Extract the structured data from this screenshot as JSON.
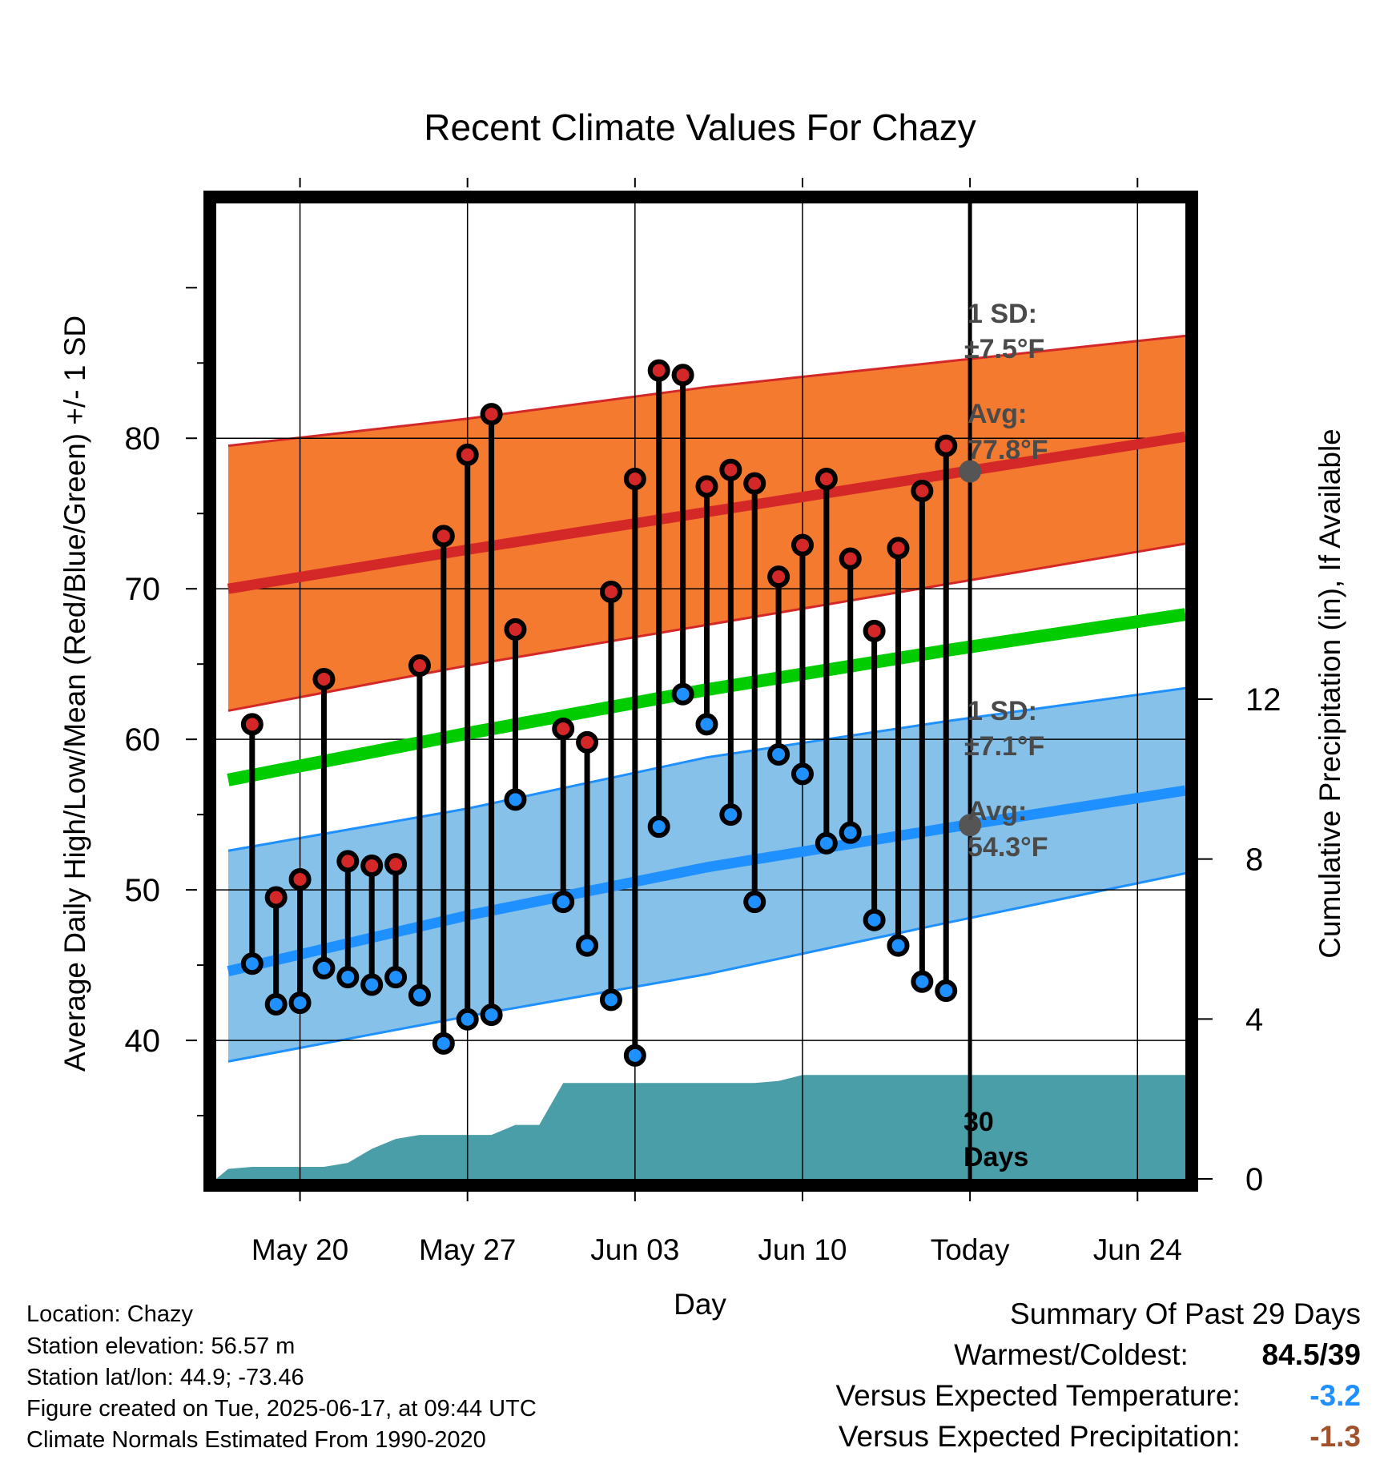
{
  "chart_data": {
    "type": "line",
    "title": "Recent Climate Values For Chazy",
    "xlabel": "Day",
    "ylabel": "Average Daily High/Low/Mean (Red/Blue/Green) +/- 1 SD",
    "y2label": "Cumulative Precipitation (in), If Available",
    "ylim": [
      30.8,
      95.6
    ],
    "y2lim": [
      0,
      24.4
    ],
    "x_tick_labels": [
      "May 20",
      "May 27",
      "Jun 03",
      "Jun 10",
      "Today",
      "Jun 24"
    ],
    "x_tick_dates": [
      "2025-05-20",
      "2025-05-27",
      "2025-06-03",
      "2025-06-10",
      "2025-06-17",
      "2025-06-24"
    ],
    "x_range": [
      "2025-05-16 12:00",
      "2025-06-26"
    ],
    "today": "2025-06-17",
    "y_tick_labels": [
      "40",
      "50",
      "60",
      "70",
      "80"
    ],
    "y2_tick_labels": [
      "0",
      "4",
      "8",
      "12"
    ],
    "grid": true,
    "colors": {
      "high_band": "#f47a30",
      "high_avg": "#d42828",
      "low_band": "#85c1e8",
      "low_avg": "#1e90ff",
      "mean": "#00cc00",
      "precip": "#4a9ea7",
      "high_marker": "#d42828",
      "low_marker": "#1e90ff",
      "today_marker": "#555555",
      "sd_label": "#4a4a4a"
    },
    "normals": {
      "dates": [
        "2025-05-17",
        "2025-05-27",
        "2025-06-06",
        "2025-06-16",
        "2025-06-26"
      ],
      "high_avg": [
        70.0,
        72.6,
        75.1,
        77.6,
        80.1
      ],
      "high_upper": [
        79.5,
        81.3,
        83.4,
        85.1,
        86.8
      ],
      "high_lower": [
        61.9,
        64.9,
        67.6,
        70.3,
        73.0
      ],
      "low_avg": [
        44.6,
        48.3,
        51.5,
        54.1,
        56.6
      ],
      "low_upper": [
        52.6,
        55.4,
        58.8,
        61.2,
        63.4
      ],
      "low_lower": [
        38.6,
        41.6,
        44.4,
        47.8,
        51.1
      ],
      "mean": [
        57.3,
        60.4,
        63.3,
        65.9,
        68.3
      ]
    },
    "series": [
      {
        "name": "High",
        "x": [
          "2025-05-18",
          "2025-05-19",
          "2025-05-20",
          "2025-05-21",
          "2025-05-22",
          "2025-05-23",
          "2025-05-24",
          "2025-05-25",
          "2025-05-26",
          "2025-05-27",
          "2025-05-28",
          "2025-05-29",
          "2025-05-31",
          "2025-06-01",
          "2025-06-02",
          "2025-06-03",
          "2025-06-04",
          "2025-06-05",
          "2025-06-06",
          "2025-06-07",
          "2025-06-08",
          "2025-06-09",
          "2025-06-10",
          "2025-06-11",
          "2025-06-12",
          "2025-06-13",
          "2025-06-14",
          "2025-06-15",
          "2025-06-16"
        ],
        "values": [
          61.0,
          49.5,
          50.7,
          64.0,
          51.9,
          51.6,
          51.7,
          64.9,
          73.5,
          78.9,
          81.6,
          67.3,
          60.7,
          59.8,
          69.8,
          77.3,
          84.5,
          84.2,
          76.8,
          77.9,
          77.0,
          70.8,
          72.9,
          77.3,
          72.0,
          67.2,
          72.7,
          76.5,
          79.5
        ]
      },
      {
        "name": "Low",
        "x": [
          "2025-05-18",
          "2025-05-19",
          "2025-05-20",
          "2025-05-21",
          "2025-05-22",
          "2025-05-23",
          "2025-05-24",
          "2025-05-25",
          "2025-05-26",
          "2025-05-27",
          "2025-05-28",
          "2025-05-29",
          "2025-05-31",
          "2025-06-01",
          "2025-06-02",
          "2025-06-03",
          "2025-06-04",
          "2025-06-05",
          "2025-06-06",
          "2025-06-07",
          "2025-06-08",
          "2025-06-09",
          "2025-06-10",
          "2025-06-11",
          "2025-06-12",
          "2025-06-13",
          "2025-06-14",
          "2025-06-15",
          "2025-06-16"
        ],
        "values": [
          45.1,
          42.4,
          42.5,
          44.8,
          44.2,
          43.7,
          44.2,
          43.0,
          39.8,
          41.4,
          41.7,
          56.0,
          49.2,
          46.3,
          42.7,
          39.0,
          54.2,
          63.0,
          61.0,
          55.0,
          49.2,
          59.0,
          57.7,
          53.1,
          53.8,
          48.0,
          46.3,
          43.9,
          43.3
        ]
      },
      {
        "name": "Cumulative Precipitation",
        "x": [
          "2025-05-16 12:00",
          "2025-05-17",
          "2025-05-18",
          "2025-05-19",
          "2025-05-20",
          "2025-05-21",
          "2025-05-22",
          "2025-05-23",
          "2025-05-24",
          "2025-05-25",
          "2025-05-26",
          "2025-05-27",
          "2025-05-28",
          "2025-05-29",
          "2025-05-30",
          "2025-05-31",
          "2025-06-01",
          "2025-06-02",
          "2025-06-03",
          "2025-06-04",
          "2025-06-05",
          "2025-06-06",
          "2025-06-07",
          "2025-06-08",
          "2025-06-09",
          "2025-06-10",
          "2025-06-11",
          "2025-06-26"
        ],
        "values": [
          0.0,
          0.25,
          0.3,
          0.3,
          0.3,
          0.3,
          0.4,
          0.75,
          1.0,
          1.1,
          1.1,
          1.1,
          1.1,
          1.35,
          1.35,
          2.4,
          2.4,
          2.4,
          2.4,
          2.4,
          2.4,
          2.4,
          2.4,
          2.4,
          2.45,
          2.6,
          2.6,
          2.6
        ]
      }
    ],
    "annotations": {
      "high_sd_title": "1 SD:",
      "high_sd_value": "±7.5°F",
      "high_avg_title": "Avg:",
      "high_avg_value": "77.8°F",
      "low_sd_title": "1 SD:",
      "low_sd_value": "±7.1°F",
      "low_avg_title": "Avg:",
      "low_avg_value": "54.3°F",
      "precip_days_value": "30",
      "precip_days_unit": "Days",
      "today_high_avg": 77.8,
      "today_low_avg": 54.3
    }
  },
  "station_info": {
    "location": "Location: Chazy",
    "elevation": "Station elevation: 56.57 m",
    "latlon": "Station lat/lon: 44.9; -73.46",
    "created": "Figure created on Tue, 2025-06-17, at 09:44 UTC",
    "normals": "Climate Normals Estimated From 1990-2020"
  },
  "summary": {
    "title": "Summary Of Past 29 Days",
    "warmest_coldest_label": "Warmest/Coldest:",
    "warmest_coldest_value": "84.5/39",
    "temp_label": "Versus Expected Temperature:",
    "temp_value": "-3.2",
    "temp_color": "#1e90ff",
    "precip_label": "Versus Expected Precipitation:",
    "precip_value": "-1.3",
    "precip_color": "#a0522d"
  }
}
